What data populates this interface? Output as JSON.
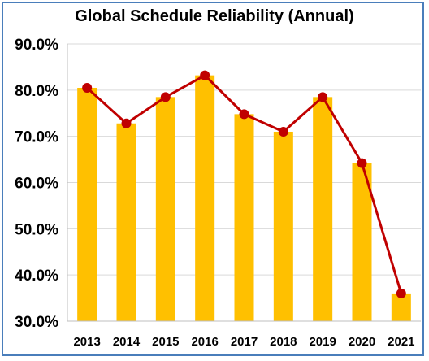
{
  "chart_data": {
    "type": "bar",
    "title": "Global Schedule Reliability (Annual)",
    "categories": [
      "2013",
      "2014",
      "2015",
      "2016",
      "2017",
      "2018",
      "2019",
      "2020",
      "2021"
    ],
    "series": [
      {
        "type": "bar",
        "values": [
          80.5,
          72.8,
          78.5,
          83.2,
          74.8,
          71.0,
          78.5,
          64.2,
          36.0
        ],
        "color": "#FFC000"
      },
      {
        "type": "line",
        "values": [
          80.5,
          72.8,
          78.5,
          83.2,
          74.8,
          71.0,
          78.5,
          64.2,
          36.0
        ],
        "color": "#C00000"
      }
    ],
    "y_ticks": [
      "30.0%",
      "40.0%",
      "50.0%",
      "60.0%",
      "70.0%",
      "80.0%",
      "90.0%"
    ],
    "ylim": [
      30,
      90
    ],
    "xlabel": "",
    "ylabel": "",
    "grid": true
  }
}
